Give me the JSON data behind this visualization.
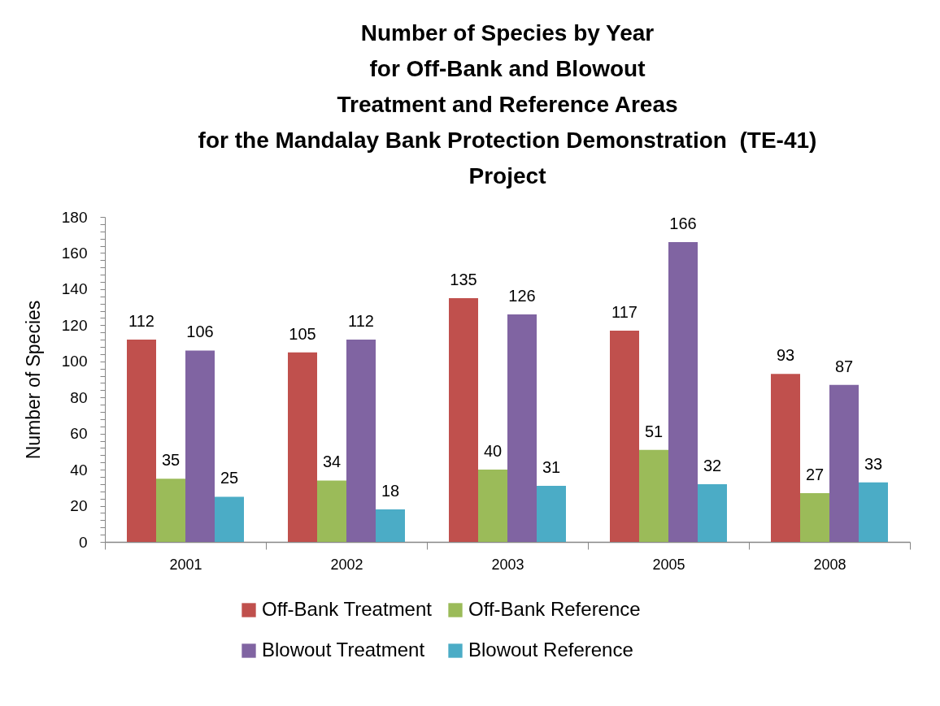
{
  "chart_data": {
    "type": "bar",
    "title": "Number of Species by Year\nfor Off-Bank and Blowout\nTreatment and Reference Areas\nfor the Mandalay Bank Protection Demonstration  (TE-41)\nProject",
    "ylabel": "Number of Species",
    "categories": [
      "2001",
      "2002",
      "2003",
      "2005",
      "2008"
    ],
    "series": [
      {
        "name": "Off-Bank Treatment",
        "color": "#c0504d",
        "values": [
          112,
          105,
          135,
          117,
          93
        ]
      },
      {
        "name": "Off-Bank Reference",
        "color": "#9bbb59",
        "values": [
          35,
          34,
          40,
          51,
          27
        ]
      },
      {
        "name": "Blowout Treatment",
        "color": "#8064a2",
        "values": [
          106,
          112,
          126,
          166,
          87
        ]
      },
      {
        "name": "Blowout Reference",
        "color": "#4bacc6",
        "values": [
          25,
          18,
          31,
          32,
          33
        ]
      }
    ],
    "ylim": [
      0,
      180
    ],
    "yticks": [
      0,
      {
        "value": 4,
        "label": null
      },
      {
        "value": 8,
        "label": null
      },
      {
        "value": 12,
        "label": null
      },
      {
        "value": 16,
        "label": null
      },
      20,
      {
        "value": 24,
        "label": null
      },
      {
        "value": 28,
        "label": null
      },
      {
        "value": 32,
        "label": null
      },
      {
        "value": 36,
        "label": null
      },
      40,
      {
        "value": 44,
        "label": null
      },
      {
        "value": 48,
        "label": null
      },
      {
        "value": 52,
        "label": null
      },
      {
        "value": 56,
        "label": null
      },
      60,
      {
        "value": 64,
        "label": null
      },
      {
        "value": 68,
        "label": null
      },
      {
        "value": 72,
        "label": null
      },
      {
        "value": 76,
        "label": null
      },
      80,
      {
        "value": 84,
        "label": null
      },
      {
        "value": 88,
        "label": null
      },
      {
        "value": 92,
        "label": null
      },
      {
        "value": 96,
        "label": null
      },
      100,
      {
        "value": 104,
        "label": null
      },
      {
        "value": 108,
        "label": null
      },
      {
        "value": 112,
        "label": null
      },
      {
        "value": 116,
        "label": null
      },
      120,
      {
        "value": 124,
        "label": null
      },
      {
        "value": 128,
        "label": null
      },
      {
        "value": 132,
        "label": null
      },
      {
        "value": 136,
        "label": null
      },
      140,
      {
        "value": 144,
        "label": null
      },
      {
        "value": 148,
        "label": null
      },
      {
        "value": 152,
        "label": null
      },
      {
        "value": 156,
        "label": null
      },
      160,
      {
        "value": 164,
        "label": null
      },
      {
        "value": 168,
        "label": null
      },
      {
        "value": 172,
        "label": null
      },
      {
        "value": 176,
        "label": null
      },
      180
    ],
    "data_labels": true,
    "legend": "bottom",
    "grid": false
  }
}
